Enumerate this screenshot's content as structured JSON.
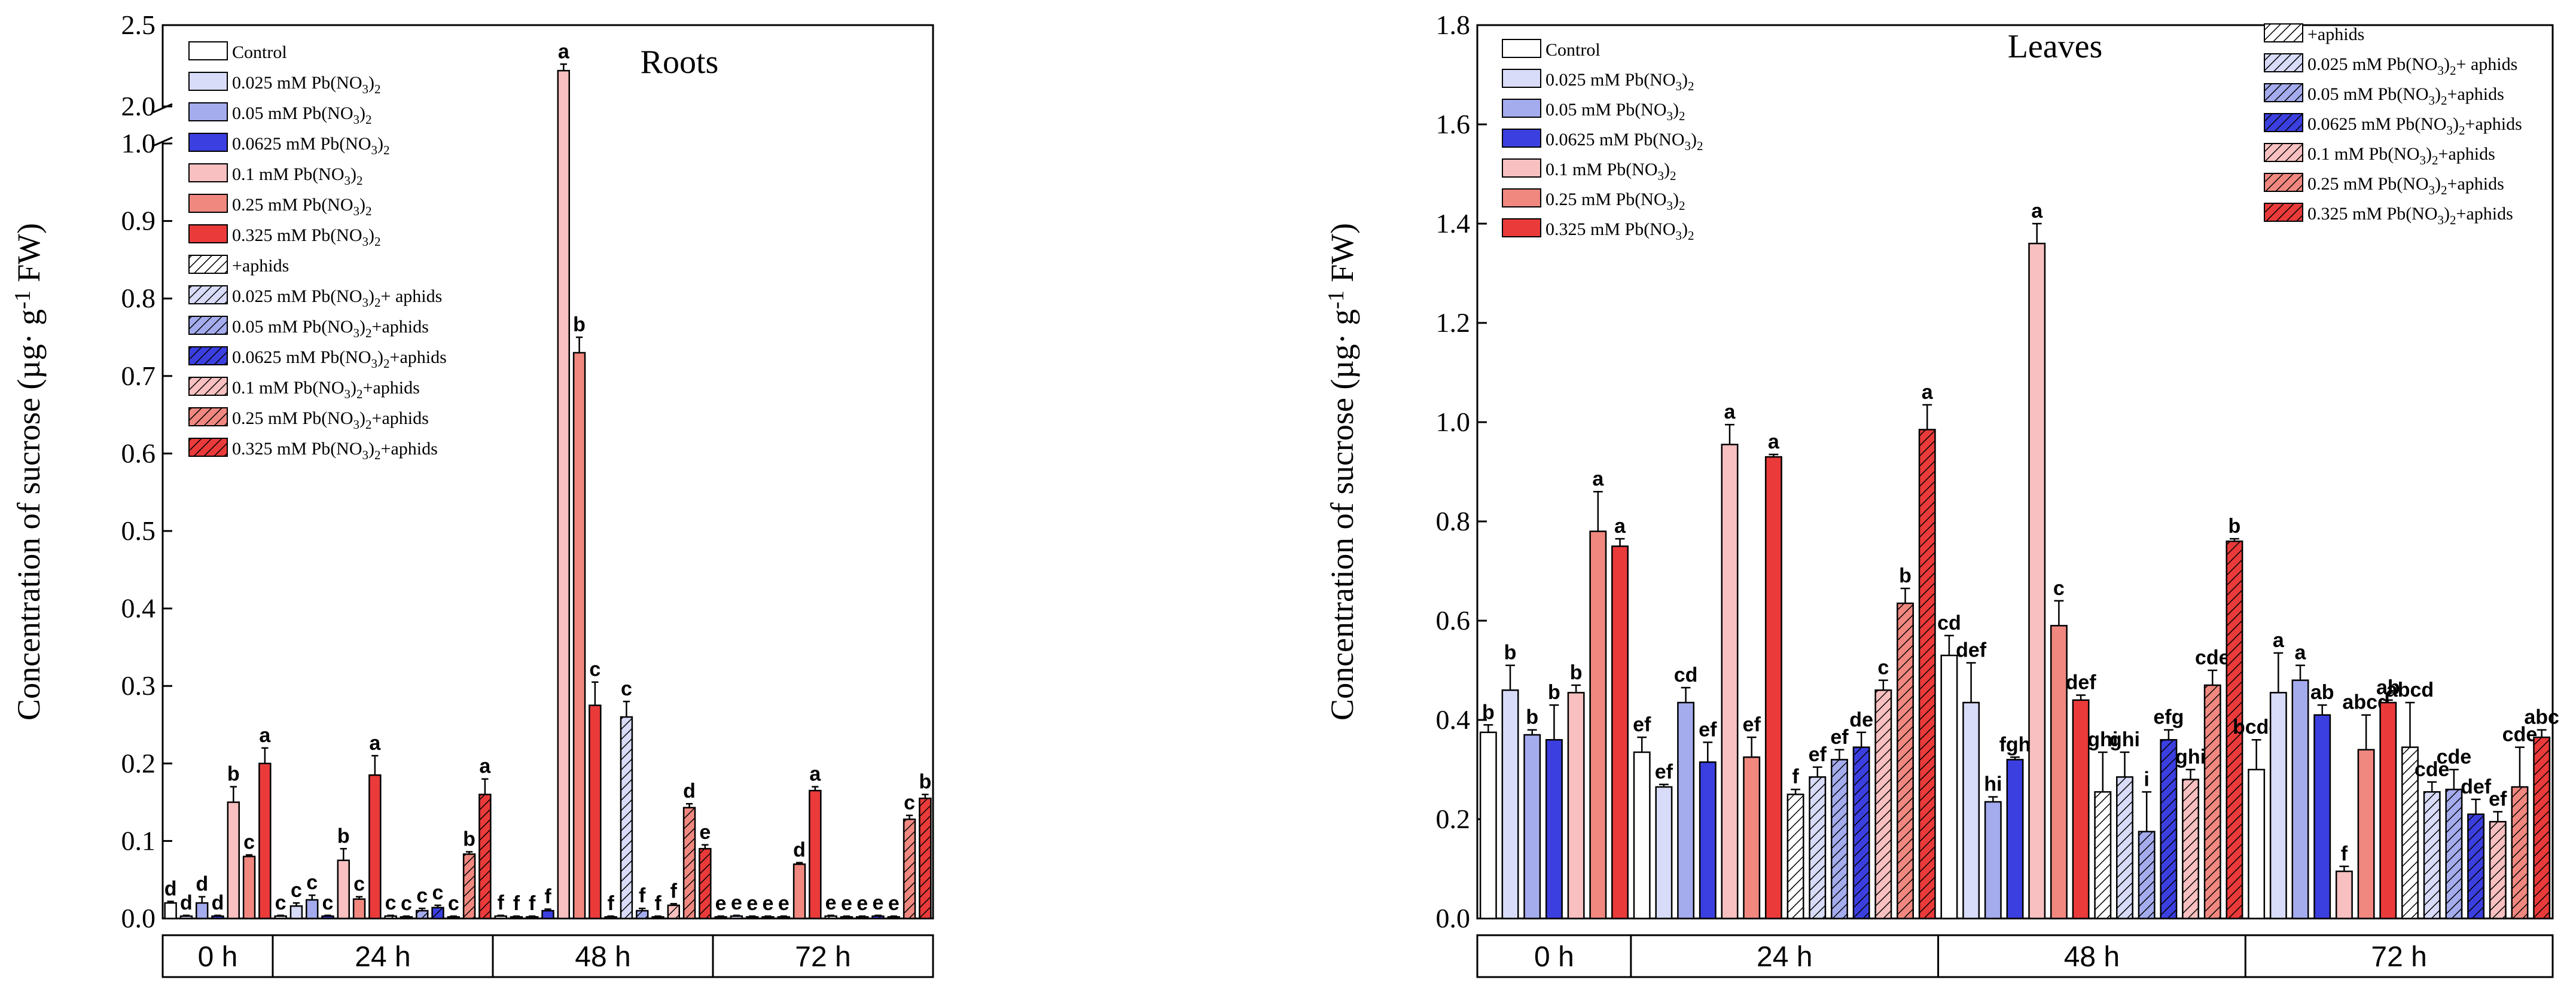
{
  "ylabel_text": "Concentration of  sucrose (µg· g⁻¹ FW)",
  "periods": [
    "0 h",
    "24 h",
    "48 h",
    "72 h"
  ],
  "treatment_colors": [
    "#ffffff",
    "#d8dcf8",
    "#a4acee",
    "#3b3fe0",
    "#f8c0c0",
    "#f08880",
    "#ea3a3a"
  ],
  "legend_left": [
    {
      "label": "Control",
      "t": 0,
      "hatch": false
    },
    {
      "label": "0.025 mM Pb(NO₃)₂",
      "t": 1,
      "hatch": false
    },
    {
      "label": "0.05  mM Pb(NO₃)₂",
      "t": 2,
      "hatch": false
    },
    {
      "label": "0.0625  mM Pb(NO₃)₂",
      "t": 3,
      "hatch": false
    },
    {
      "label": "0.1  mM Pb(NO₃)₂",
      "t": 4,
      "hatch": false
    },
    {
      "label": "0.25  mM Pb(NO₃)₂",
      "t": 5,
      "hatch": false
    },
    {
      "label": "0.325  mM Pb(NO₃)₂",
      "t": 6,
      "hatch": false
    },
    {
      "label": "+aphids",
      "t": 0,
      "hatch": true
    },
    {
      "label": "0.025 mM Pb(NO₃)₂+ aphids",
      "t": 1,
      "hatch": true
    },
    {
      "label": "0.05 mM Pb(NO₃)₂+aphids",
      "t": 2,
      "hatch": true
    },
    {
      "label": "0.0625 mM Pb(NO₃)₂+aphids",
      "t": 3,
      "hatch": true
    },
    {
      "label": "0.1 mM Pb(NO₃)₂+aphids",
      "t": 4,
      "hatch": true
    },
    {
      "label": "0.25 mM Pb(NO₃)₂+aphids",
      "t": 5,
      "hatch": true
    },
    {
      "label": "0.325 mM Pb(NO₃)₂+aphids",
      "t": 6,
      "hatch": true
    }
  ],
  "legend_right_a": [
    {
      "label": "Control",
      "t": 0,
      "hatch": false
    },
    {
      "label": "0.025 mM Pb(NO₃)₂",
      "t": 1,
      "hatch": false
    },
    {
      "label": "0.05  mM Pb(NO₃)₂",
      "t": 2,
      "hatch": false
    },
    {
      "label": "0.0625  mM Pb(NO₃)₂",
      "t": 3,
      "hatch": false
    },
    {
      "label": "0.1  mM Pb(NO₃)₂",
      "t": 4,
      "hatch": false
    },
    {
      "label": "0.25  mM Pb(NO₃)₂",
      "t": 5,
      "hatch": false
    },
    {
      "label": "0.325  mM Pb(NO₃)₂",
      "t": 6,
      "hatch": false
    }
  ],
  "legend_right_b": [
    {
      "label": "+aphids",
      "t": 0,
      "hatch": true
    },
    {
      "label": "0.025 mM Pb(NO₃)₂+ aphids",
      "t": 1,
      "hatch": true
    },
    {
      "label": "0.05 mM Pb(NO₃)₂+aphids",
      "t": 2,
      "hatch": true
    },
    {
      "label": "0.0625 mM Pb(NO₃)₂+aphids",
      "t": 3,
      "hatch": true
    },
    {
      "label": "0.1 mM Pb(NO₃)₂+aphids",
      "t": 4,
      "hatch": true
    },
    {
      "label": "0.25 mM Pb(NO₃)₂+aphids",
      "t": 5,
      "hatch": true
    },
    {
      "label": "0.325 mM Pb(NO₃)₂+aphids",
      "t": 6,
      "hatch": true
    }
  ],
  "chart_data": [
    {
      "type": "bar",
      "title": "Roots",
      "ylabel": "Concentration of  sucrose (µg· g⁻¹ FW)",
      "axis_break": {
        "lower": [
          0,
          1.0
        ],
        "upper": [
          2.0,
          2.5
        ]
      },
      "yticks_lower": [
        "0.0",
        "0.1",
        "0.2",
        "0.3",
        "0.4",
        "0.5",
        "0.6",
        "0.7",
        "0.8",
        "0.9",
        "1.0"
      ],
      "yticks_upper": [
        "2.0",
        "2.5"
      ],
      "groups": [
        {
          "period": "0 h",
          "aphids": false,
          "bars": [
            {
              "t": 0,
              "v": 0.02,
              "e": 0.002,
              "l": "d"
            },
            {
              "t": 1,
              "v": 0.003,
              "e": 0.001,
              "l": "d"
            },
            {
              "t": 2,
              "v": 0.02,
              "e": 0.008,
              "l": "d"
            },
            {
              "t": 3,
              "v": 0.003,
              "e": 0.001,
              "l": "d"
            },
            {
              "t": 4,
              "v": 0.15,
              "e": 0.02,
              "l": "b"
            },
            {
              "t": 5,
              "v": 0.08,
              "e": 0.002,
              "l": "c"
            },
            {
              "t": 6,
              "v": 0.2,
              "e": 0.02,
              "l": "a"
            }
          ]
        },
        {
          "period": "24 h",
          "aphids": false,
          "bars": [
            {
              "t": 0,
              "v": 0.003,
              "e": 0.001,
              "l": "c"
            },
            {
              "t": 1,
              "v": 0.016,
              "e": 0.004,
              "l": "c"
            },
            {
              "t": 2,
              "v": 0.024,
              "e": 0.006,
              "l": "c"
            },
            {
              "t": 3,
              "v": 0.003,
              "e": 0.001,
              "l": "c"
            },
            {
              "t": 4,
              "v": 0.075,
              "e": 0.015,
              "l": "b"
            },
            {
              "t": 5,
              "v": 0.025,
              "e": 0.003,
              "l": "c"
            },
            {
              "t": 6,
              "v": 0.185,
              "e": 0.025,
              "l": "a"
            }
          ]
        },
        {
          "period": "24 h",
          "aphids": true,
          "bars": [
            {
              "t": 0,
              "v": 0.003,
              "e": 0.001,
              "l": "c"
            },
            {
              "t": 1,
              "v": 0.002,
              "e": 0.001,
              "l": "c"
            },
            {
              "t": 2,
              "v": 0.01,
              "e": 0.003,
              "l": "c"
            },
            {
              "t": 3,
              "v": 0.014,
              "e": 0.003,
              "l": "c"
            },
            {
              "t": 4,
              "v": 0.002,
              "e": 0.001,
              "l": "c"
            },
            {
              "t": 5,
              "v": 0.083,
              "e": 0.003,
              "l": "b"
            },
            {
              "t": 6,
              "v": 0.16,
              "e": 0.02,
              "l": "a"
            }
          ]
        },
        {
          "period": "48 h",
          "aphids": false,
          "bars": [
            {
              "t": 0,
              "v": 0.003,
              "e": 0.001,
              "l": "f"
            },
            {
              "t": 1,
              "v": 0.002,
              "e": 0.001,
              "l": "f"
            },
            {
              "t": 2,
              "v": 0.002,
              "e": 0.001,
              "l": "f"
            },
            {
              "t": 3,
              "v": 0.01,
              "e": 0.002,
              "l": "f"
            },
            {
              "t": 4,
              "v": 2.22,
              "e": 0.04,
              "l": "a"
            },
            {
              "t": 5,
              "v": 0.73,
              "e": 0.02,
              "l": "b"
            },
            {
              "t": 6,
              "v": 0.275,
              "e": 0.03,
              "l": "c"
            }
          ]
        },
        {
          "period": "48 h",
          "aphids": true,
          "bars": [
            {
              "t": 0,
              "v": 0.002,
              "e": 0.001,
              "l": "f"
            },
            {
              "t": 1,
              "v": 0.26,
              "e": 0.02,
              "l": "c"
            },
            {
              "t": 2,
              "v": 0.01,
              "e": 0.003,
              "l": "f"
            },
            {
              "t": 3,
              "v": 0.002,
              "e": 0.001,
              "l": "f"
            },
            {
              "t": 4,
              "v": 0.017,
              "e": 0.002,
              "l": "f"
            },
            {
              "t": 5,
              "v": 0.143,
              "e": 0.005,
              "l": "d"
            },
            {
              "t": 6,
              "v": 0.09,
              "e": 0.005,
              "l": "e"
            }
          ]
        },
        {
          "period": "72 h",
          "aphids": false,
          "bars": [
            {
              "t": 0,
              "v": 0.002,
              "e": 0.001,
              "l": "e"
            },
            {
              "t": 1,
              "v": 0.003,
              "e": 0.001,
              "l": "e"
            },
            {
              "t": 2,
              "v": 0.002,
              "e": 0.001,
              "l": "e"
            },
            {
              "t": 3,
              "v": 0.002,
              "e": 0.001,
              "l": "e"
            },
            {
              "t": 4,
              "v": 0.002,
              "e": 0.001,
              "l": "e"
            },
            {
              "t": 5,
              "v": 0.07,
              "e": 0.002,
              "l": "d"
            },
            {
              "t": 6,
              "v": 0.165,
              "e": 0.005,
              "l": "a"
            }
          ]
        },
        {
          "period": "72 h",
          "aphids": true,
          "bars": [
            {
              "t": 0,
              "v": 0.003,
              "e": 0.001,
              "l": "e"
            },
            {
              "t": 1,
              "v": 0.002,
              "e": 0.001,
              "l": "e"
            },
            {
              "t": 2,
              "v": 0.002,
              "e": 0.001,
              "l": "e"
            },
            {
              "t": 3,
              "v": 0.003,
              "e": 0.001,
              "l": "e"
            },
            {
              "t": 4,
              "v": 0.002,
              "e": 0.001,
              "l": "e"
            },
            {
              "t": 5,
              "v": 0.128,
              "e": 0.005,
              "l": "c"
            },
            {
              "t": 6,
              "v": 0.155,
              "e": 0.005,
              "l": "b"
            }
          ]
        }
      ]
    },
    {
      "type": "bar",
      "title": "Leaves",
      "ylabel": "Concentration of  sucrose (µg· g⁻¹ FW)",
      "ylim": [
        0,
        1.8
      ],
      "yticks": [
        "0.0",
        "0.2",
        "0.4",
        "0.6",
        "0.8",
        "1.0",
        "1.2",
        "1.4",
        "1.6",
        "1.8"
      ],
      "groups": [
        {
          "period": "0 h",
          "aphids": false,
          "bars": [
            {
              "t": 0,
              "v": 0.375,
              "e": 0.015,
              "l": "b"
            },
            {
              "t": 1,
              "v": 0.46,
              "e": 0.05,
              "l": "b"
            },
            {
              "t": 2,
              "v": 0.37,
              "e": 0.01,
              "l": "b"
            },
            {
              "t": 3,
              "v": 0.36,
              "e": 0.07,
              "l": "b"
            },
            {
              "t": 4,
              "v": 0.455,
              "e": 0.015,
              "l": "b"
            },
            {
              "t": 5,
              "v": 0.78,
              "e": 0.08,
              "l": "a"
            },
            {
              "t": 6,
              "v": 0.75,
              "e": 0.015,
              "l": "a"
            }
          ]
        },
        {
          "period": "24 h",
          "aphids": false,
          "bars": [
            {
              "t": 0,
              "v": 0.335,
              "e": 0.03,
              "l": "ef"
            },
            {
              "t": 1,
              "v": 0.265,
              "e": 0.005,
              "l": "ef"
            },
            {
              "t": 2,
              "v": 0.435,
              "e": 0.03,
              "l": "cd"
            },
            {
              "t": 3,
              "v": 0.315,
              "e": 0.04,
              "l": "ef"
            },
            {
              "t": 4,
              "v": 0.955,
              "e": 0.04,
              "l": "a"
            },
            {
              "t": 5,
              "v": 0.325,
              "e": 0.04,
              "l": "ef"
            },
            {
              "t": 6,
              "v": 0.93,
              "e": 0.005,
              "l": "a"
            }
          ]
        },
        {
          "period": "24 h",
          "aphids": true,
          "bars": [
            {
              "t": 0,
              "v": 0.25,
              "e": 0.01,
              "l": "f"
            },
            {
              "t": 1,
              "v": 0.285,
              "e": 0.02,
              "l": "ef"
            },
            {
              "t": 2,
              "v": 0.32,
              "e": 0.02,
              "l": "ef"
            },
            {
              "t": 3,
              "v": 0.345,
              "e": 0.03,
              "l": "de"
            },
            {
              "t": 4,
              "v": 0.46,
              "e": 0.02,
              "l": "c"
            },
            {
              "t": 5,
              "v": 0.635,
              "e": 0.03,
              "l": "b"
            },
            {
              "t": 6,
              "v": 0.985,
              "e": 0.05,
              "l": "a"
            }
          ]
        },
        {
          "period": "48 h",
          "aphids": false,
          "bars": [
            {
              "t": 0,
              "v": 0.53,
              "e": 0.04,
              "l": "cd"
            },
            {
              "t": 1,
              "v": 0.435,
              "e": 0.08,
              "l": "def"
            },
            {
              "t": 2,
              "v": 0.235,
              "e": 0.01,
              "l": "hi"
            },
            {
              "t": 3,
              "v": 0.32,
              "e": 0.005,
              "l": "fgh"
            },
            {
              "t": 4,
              "v": 1.36,
              "e": 0.04,
              "l": "a"
            },
            {
              "t": 5,
              "v": 0.59,
              "e": 0.05,
              "l": "c"
            },
            {
              "t": 6,
              "v": 0.44,
              "e": 0.01,
              "l": "def"
            }
          ]
        },
        {
          "period": "48 h",
          "aphids": true,
          "bars": [
            {
              "t": 0,
              "v": 0.255,
              "e": 0.08,
              "l": "ghi"
            },
            {
              "t": 1,
              "v": 0.285,
              "e": 0.05,
              "l": "ghi"
            },
            {
              "t": 2,
              "v": 0.175,
              "e": 0.08,
              "l": "i"
            },
            {
              "t": 3,
              "v": 0.36,
              "e": 0.02,
              "l": "efg"
            },
            {
              "t": 4,
              "v": 0.28,
              "e": 0.02,
              "l": "ghi"
            },
            {
              "t": 5,
              "v": 0.47,
              "e": 0.03,
              "l": "cde"
            },
            {
              "t": 6,
              "v": 0.76,
              "e": 0.005,
              "l": "b"
            }
          ]
        },
        {
          "period": "72 h",
          "aphids": false,
          "bars": [
            {
              "t": 0,
              "v": 0.3,
              "e": 0.06,
              "l": "bcde"
            },
            {
              "t": 1,
              "v": 0.455,
              "e": 0.08,
              "l": "a"
            },
            {
              "t": 2,
              "v": 0.48,
              "e": 0.03,
              "l": "a"
            },
            {
              "t": 3,
              "v": 0.41,
              "e": 0.02,
              "l": "ab"
            },
            {
              "t": 4,
              "v": 0.095,
              "e": 0.01,
              "l": "f"
            },
            {
              "t": 5,
              "v": 0.34,
              "e": 0.07,
              "l": "abcd"
            },
            {
              "t": 6,
              "v": 0.435,
              "e": 0.005,
              "l": "ab"
            }
          ]
        },
        {
          "period": "72 h",
          "aphids": true,
          "bars": [
            {
              "t": 0,
              "v": 0.345,
              "e": 0.09,
              "l": "abcd"
            },
            {
              "t": 1,
              "v": 0.255,
              "e": 0.02,
              "l": "cde"
            },
            {
              "t": 2,
              "v": 0.26,
              "e": 0.04,
              "l": "cde"
            },
            {
              "t": 3,
              "v": 0.21,
              "e": 0.03,
              "l": "def"
            },
            {
              "t": 4,
              "v": 0.195,
              "e": 0.02,
              "l": "ef"
            },
            {
              "t": 5,
              "v": 0.265,
              "e": 0.08,
              "l": "cde"
            },
            {
              "t": 6,
              "v": 0.365,
              "e": 0.015,
              "l": "abc"
            }
          ]
        }
      ]
    }
  ]
}
